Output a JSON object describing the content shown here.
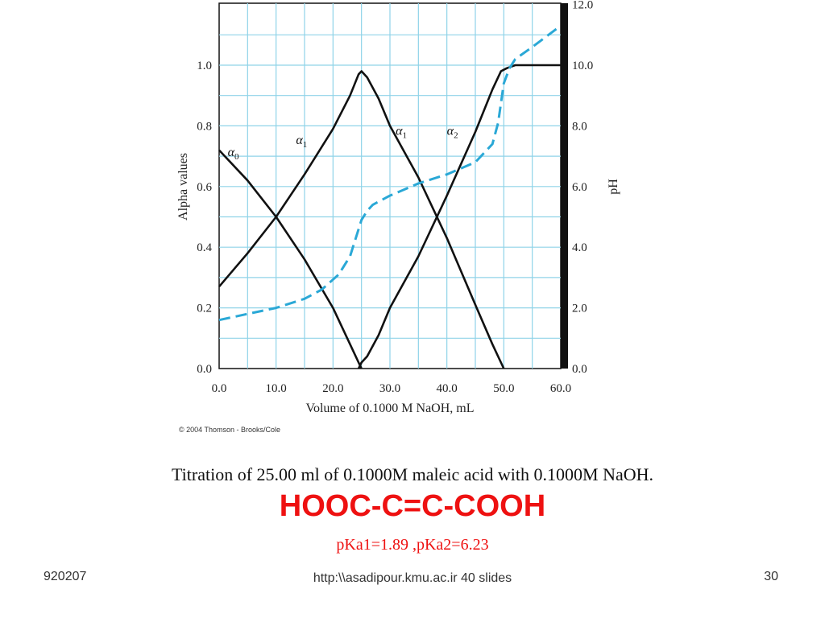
{
  "chart_data": {
    "type": "line",
    "xlabel": "Volume of 0.1000 M NaOH, mL",
    "ylabel": "Alpha values",
    "y2label": "pH",
    "xlim": [
      0,
      60
    ],
    "ylim": [
      0,
      1.2
    ],
    "y2lim": [
      0,
      12
    ],
    "xticks": [
      "0.0",
      "10.0",
      "20.0",
      "30.0",
      "40.0",
      "50.0",
      "60.0"
    ],
    "yticks": [
      "0.0",
      "0.2",
      "0.4",
      "0.6",
      "0.8",
      "1.0"
    ],
    "y2ticks": [
      "0.0",
      "2.0",
      "4.0",
      "6.0",
      "8.0",
      "10.0",
      "12.0"
    ],
    "grid": true,
    "grid_color": "#8fd3e8",
    "series": [
      {
        "name": "α0",
        "axis": "left",
        "color": "#111111",
        "style": "solid",
        "x": [
          0,
          5,
          10,
          15,
          20,
          23,
          24.5,
          25
        ],
        "y": [
          0.72,
          0.62,
          0.5,
          0.36,
          0.2,
          0.08,
          0.02,
          0.0
        ]
      },
      {
        "name": "α1",
        "axis": "left",
        "color": "#111111",
        "style": "solid",
        "x": [
          0,
          5,
          10,
          15,
          20,
          23,
          24.5,
          25,
          26,
          28,
          30,
          35,
          40,
          45,
          48,
          49.5,
          50
        ],
        "y": [
          0.27,
          0.38,
          0.5,
          0.64,
          0.79,
          0.9,
          0.97,
          0.98,
          0.96,
          0.89,
          0.8,
          0.63,
          0.43,
          0.21,
          0.08,
          0.02,
          0.0
        ]
      },
      {
        "name": "α2",
        "axis": "left",
        "color": "#111111",
        "style": "solid",
        "x": [
          24.5,
          25,
          26,
          28,
          30,
          35,
          40,
          45,
          48,
          49.5,
          50.5,
          52,
          55,
          60
        ],
        "y": [
          0.0,
          0.02,
          0.04,
          0.11,
          0.2,
          0.37,
          0.57,
          0.78,
          0.92,
          0.98,
          0.99,
          1.0,
          1.0,
          1.0
        ]
      },
      {
        "name": "pH",
        "axis": "right",
        "color": "#2aa8d6",
        "style": "dashed",
        "x": [
          0,
          5,
          10,
          15,
          18,
          21,
          23,
          24,
          25,
          26,
          27,
          30,
          35,
          40,
          45,
          48,
          49,
          50,
          51,
          52,
          55,
          60
        ],
        "y": [
          1.6,
          1.8,
          2.0,
          2.3,
          2.6,
          3.1,
          3.7,
          4.3,
          4.9,
          5.2,
          5.4,
          5.7,
          6.1,
          6.4,
          6.8,
          7.4,
          8.1,
          9.4,
          9.9,
          10.2,
          10.6,
          11.3
        ]
      }
    ],
    "labels": [
      {
        "text": "α",
        "sub": "0",
        "x": 1.5,
        "y": 0.7
      },
      {
        "text": "α",
        "sub": "1",
        "x": 13.5,
        "y": 0.74
      },
      {
        "text": "α",
        "sub": "1",
        "x": 31.0,
        "y": 0.77
      },
      {
        "text": "α",
        "sub": "2",
        "x": 40.0,
        "y": 0.77
      }
    ],
    "copyright": "© 2004 Thomson - Brooks/Cole"
  },
  "caption": "Titration of 25.00 ml of 0.1000M maleic acid with 0.1000M NaOH.",
  "formula": "HOOC-C=C-COOH",
  "pka": "pKa1=1.89 ,pKa2=6.23",
  "footer": {
    "left": "920207",
    "middle": "http:\\\\asadipour.kmu.ac.ir  40 slides",
    "right": "30"
  }
}
